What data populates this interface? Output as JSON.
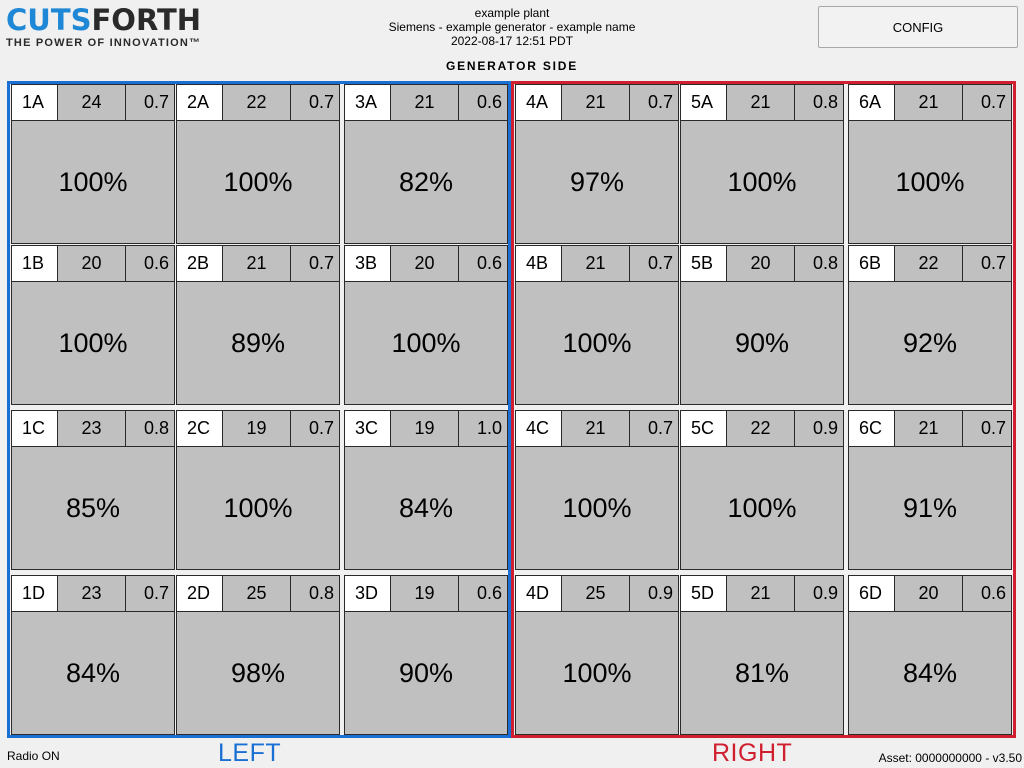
{
  "logo": {
    "brand_a": "CUTS",
    "brand_b": "FORTH",
    "tagline": "THE POWER OF INNOVATION™"
  },
  "header": {
    "plant": "example plant",
    "generator": "Siemens - example generator - example name",
    "timestamp": "2022-08-17 12:51 PDT",
    "config_label": "CONFIG",
    "section_title": "GENERATOR SIDE"
  },
  "colors": {
    "left_accent": "#1a6fd4",
    "right_accent": "#d0202f",
    "cell_bg": "#c0c0c0"
  },
  "rows": [
    [
      {
        "id": "1A",
        "temp": "24",
        "wear": "0.7",
        "pct": "100%"
      },
      {
        "id": "2A",
        "temp": "22",
        "wear": "0.7",
        "pct": "100%"
      },
      {
        "id": "3A",
        "temp": "21",
        "wear": "0.6",
        "pct": "82%"
      },
      {
        "id": "4A",
        "temp": "21",
        "wear": "0.7",
        "pct": "97%"
      },
      {
        "id": "5A",
        "temp": "21",
        "wear": "0.8",
        "pct": "100%"
      },
      {
        "id": "6A",
        "temp": "21",
        "wear": "0.7",
        "pct": "100%"
      }
    ],
    [
      {
        "id": "1B",
        "temp": "20",
        "wear": "0.6",
        "pct": "100%"
      },
      {
        "id": "2B",
        "temp": "21",
        "wear": "0.7",
        "pct": "89%"
      },
      {
        "id": "3B",
        "temp": "20",
        "wear": "0.6",
        "pct": "100%"
      },
      {
        "id": "4B",
        "temp": "21",
        "wear": "0.7",
        "pct": "100%"
      },
      {
        "id": "5B",
        "temp": "20",
        "wear": "0.8",
        "pct": "90%"
      },
      {
        "id": "6B",
        "temp": "22",
        "wear": "0.7",
        "pct": "92%"
      }
    ],
    [
      {
        "id": "1C",
        "temp": "23",
        "wear": "0.8",
        "pct": "85%"
      },
      {
        "id": "2C",
        "temp": "19",
        "wear": "0.7",
        "pct": "100%"
      },
      {
        "id": "3C",
        "temp": "19",
        "wear": "1.0",
        "pct": "84%"
      },
      {
        "id": "4C",
        "temp": "21",
        "wear": "0.7",
        "pct": "100%"
      },
      {
        "id": "5C",
        "temp": "22",
        "wear": "0.9",
        "pct": "100%"
      },
      {
        "id": "6C",
        "temp": "21",
        "wear": "0.7",
        "pct": "91%"
      }
    ],
    [
      {
        "id": "1D",
        "temp": "23",
        "wear": "0.7",
        "pct": "84%"
      },
      {
        "id": "2D",
        "temp": "25",
        "wear": "0.8",
        "pct": "98%"
      },
      {
        "id": "3D",
        "temp": "19",
        "wear": "0.6",
        "pct": "90%"
      },
      {
        "id": "4D",
        "temp": "25",
        "wear": "0.9",
        "pct": "100%"
      },
      {
        "id": "5D",
        "temp": "21",
        "wear": "0.9",
        "pct": "81%"
      },
      {
        "id": "6D",
        "temp": "20",
        "wear": "0.6",
        "pct": "84%"
      }
    ]
  ],
  "sides": {
    "left_label": "LEFT",
    "right_label": "RIGHT"
  },
  "footer": {
    "radio_status": "Radio ON",
    "asset": "Asset: 0000000000 - v3.50"
  }
}
